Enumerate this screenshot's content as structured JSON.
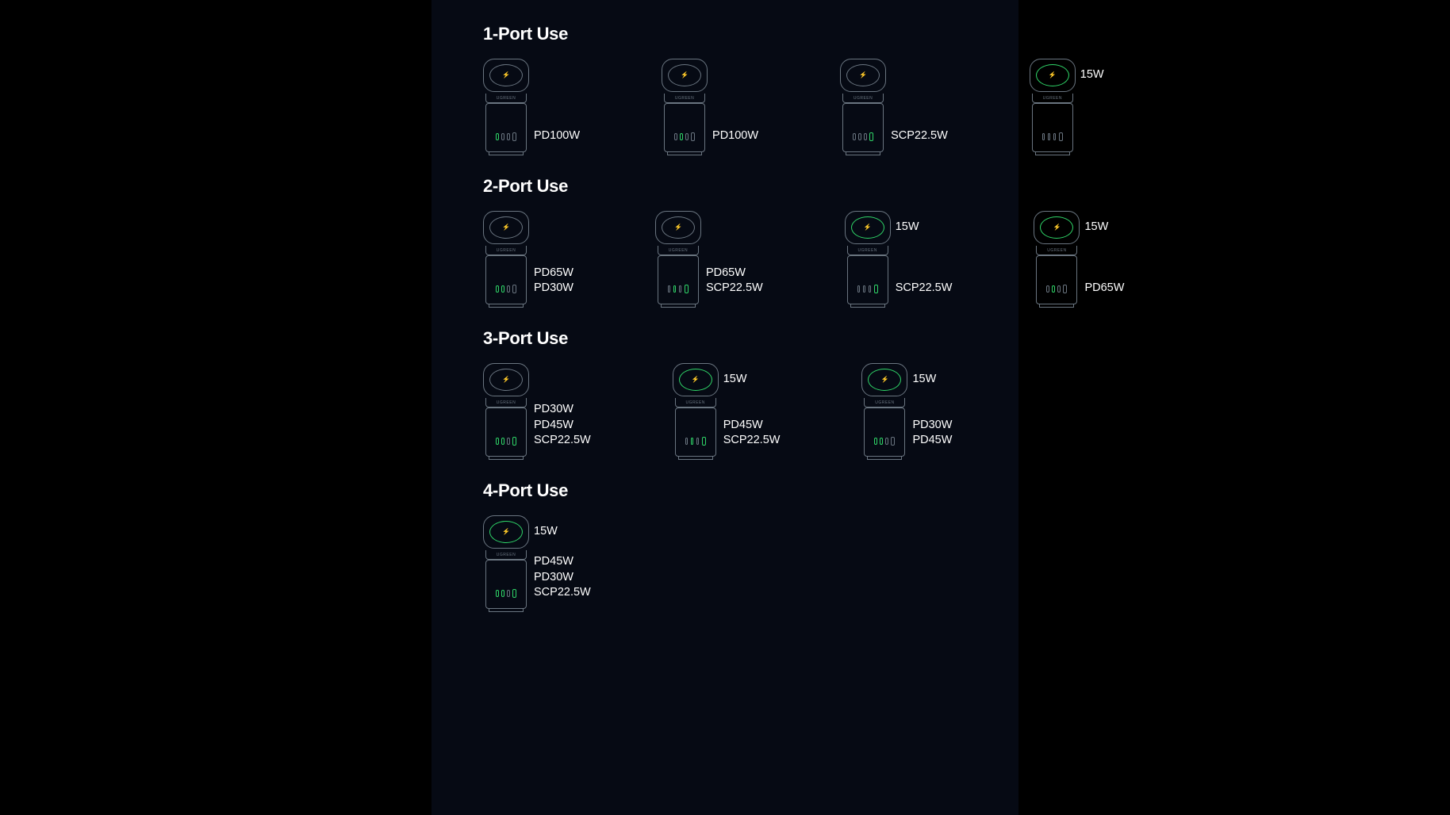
{
  "brand_text": "UGREEN",
  "colors": {
    "page_bg": "#000000",
    "panel_bg": "#060a14",
    "outline": "#6a7580",
    "active": "#2fd668",
    "text": "#ffffff"
  },
  "port_layout": [
    "usbc",
    "usbc",
    "usbc",
    "usba"
  ],
  "sections": [
    {
      "title": "1-Port Use",
      "items": [
        {
          "wireless_active": false,
          "ports_active": [
            0
          ],
          "top_label": null,
          "bottom_labels": [
            "PD100W"
          ]
        },
        {
          "wireless_active": false,
          "ports_active": [
            1
          ],
          "top_label": null,
          "bottom_labels": [
            "PD100W"
          ]
        },
        {
          "wireless_active": false,
          "ports_active": [
            3
          ],
          "top_label": null,
          "bottom_labels": [
            "SCP22.5W"
          ]
        },
        {
          "wireless_active": true,
          "ports_active": [],
          "top_label": "15W",
          "bottom_labels": []
        }
      ]
    },
    {
      "title": "2-Port Use",
      "items": [
        {
          "wireless_active": false,
          "ports_active": [
            0,
            1
          ],
          "top_label": null,
          "bottom_labels": [
            "PD65W",
            "PD30W"
          ]
        },
        {
          "wireless_active": false,
          "ports_active": [
            1,
            3
          ],
          "top_label": null,
          "bottom_labels": [
            "PD65W",
            "SCP22.5W"
          ]
        },
        {
          "wireless_active": true,
          "ports_active": [
            3
          ],
          "top_label": "15W",
          "bottom_labels": [
            "SCP22.5W"
          ]
        },
        {
          "wireless_active": true,
          "ports_active": [
            1
          ],
          "top_label": "15W",
          "bottom_labels": [
            "PD65W"
          ]
        }
      ]
    },
    {
      "title": "3-Port Use",
      "items": [
        {
          "wireless_active": false,
          "ports_active": [
            0,
            1,
            3
          ],
          "top_label": null,
          "bottom_labels": [
            "PD30W",
            "PD45W",
            "SCP22.5W"
          ]
        },
        {
          "wireless_active": true,
          "ports_active": [
            1,
            3
          ],
          "top_label": "15W",
          "bottom_labels": [
            "PD45W",
            "SCP22.5W"
          ]
        },
        {
          "wireless_active": true,
          "ports_active": [
            0,
            1
          ],
          "top_label": "15W",
          "bottom_labels": [
            "PD30W",
            "PD45W"
          ]
        }
      ]
    },
    {
      "title": "4-Port Use",
      "items": [
        {
          "wireless_active": true,
          "ports_active": [
            0,
            1,
            3
          ],
          "top_label": "15W",
          "bottom_labels": [
            "PD45W",
            "PD30W",
            "SCP22.5W"
          ]
        }
      ]
    }
  ]
}
